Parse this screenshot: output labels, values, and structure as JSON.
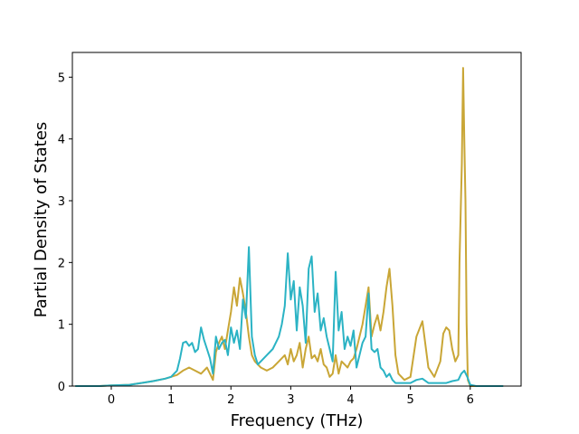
{
  "chart_data": {
    "type": "line",
    "title": "",
    "xlabel": "Frequency (THz)",
    "ylabel": "Partial Density of States",
    "xlim": [
      -0.65,
      6.85
    ],
    "ylim": [
      0,
      5.4
    ],
    "xticks": [
      0,
      1,
      2,
      3,
      4,
      5,
      6
    ],
    "yticks": [
      0,
      1,
      2,
      3,
      4,
      5
    ],
    "grid": false,
    "series": [
      {
        "color": "#c9a636",
        "x": [
          -0.6,
          -0.2,
          0,
          0.3,
          0.5,
          0.7,
          0.9,
          1.0,
          1.1,
          1.2,
          1.3,
          1.4,
          1.5,
          1.6,
          1.65,
          1.7,
          1.75,
          1.8,
          1.85,
          1.9,
          1.95,
          2.0,
          2.05,
          2.1,
          2.15,
          2.2,
          2.25,
          2.3,
          2.35,
          2.4,
          2.5,
          2.6,
          2.7,
          2.8,
          2.9,
          2.95,
          3.0,
          3.05,
          3.1,
          3.15,
          3.2,
          3.25,
          3.3,
          3.35,
          3.4,
          3.45,
          3.5,
          3.55,
          3.6,
          3.65,
          3.7,
          3.75,
          3.8,
          3.85,
          3.9,
          3.95,
          4.0,
          4.05,
          4.1,
          4.15,
          4.2,
          4.25,
          4.3,
          4.35,
          4.4,
          4.45,
          4.5,
          4.55,
          4.6,
          4.65,
          4.7,
          4.75,
          4.8,
          4.9,
          5.0,
          5.1,
          5.2,
          5.3,
          5.4,
          5.5,
          5.55,
          5.6,
          5.65,
          5.7,
          5.75,
          5.8,
          5.82,
          5.84,
          5.86,
          5.88,
          5.9,
          5.92,
          5.94,
          5.96,
          6.0,
          6.1,
          6.55
        ],
        "y": [
          0,
          0,
          0.01,
          0.02,
          0.05,
          0.08,
          0.12,
          0.15,
          0.18,
          0.25,
          0.3,
          0.25,
          0.2,
          0.3,
          0.2,
          0.1,
          0.55,
          0.7,
          0.8,
          0.6,
          0.9,
          1.2,
          1.6,
          1.3,
          1.75,
          1.5,
          1.2,
          0.8,
          0.5,
          0.4,
          0.3,
          0.25,
          0.3,
          0.4,
          0.5,
          0.35,
          0.6,
          0.4,
          0.5,
          0.7,
          0.3,
          0.6,
          0.8,
          0.45,
          0.5,
          0.4,
          0.6,
          0.35,
          0.3,
          0.15,
          0.2,
          0.5,
          0.2,
          0.4,
          0.35,
          0.3,
          0.4,
          0.45,
          0.6,
          0.8,
          1.0,
          1.3,
          1.6,
          0.8,
          1.0,
          1.15,
          0.9,
          1.2,
          1.6,
          1.9,
          1.3,
          0.5,
          0.2,
          0.1,
          0.15,
          0.8,
          1.05,
          0.3,
          0.15,
          0.4,
          0.85,
          0.95,
          0.9,
          0.6,
          0.4,
          0.5,
          2.0,
          2.8,
          3.6,
          5.15,
          4.0,
          3.0,
          1.0,
          0.1,
          0.0,
          0.0,
          0.0
        ]
      },
      {
        "color": "#2bb3c4",
        "x": [
          -0.6,
          -0.2,
          0,
          0.3,
          0.5,
          0.7,
          0.9,
          1.0,
          1.05,
          1.1,
          1.15,
          1.2,
          1.25,
          1.3,
          1.35,
          1.4,
          1.45,
          1.5,
          1.55,
          1.6,
          1.65,
          1.7,
          1.75,
          1.8,
          1.85,
          1.9,
          1.95,
          2.0,
          2.05,
          2.1,
          2.15,
          2.2,
          2.25,
          2.3,
          2.35,
          2.4,
          2.45,
          2.5,
          2.6,
          2.7,
          2.8,
          2.85,
          2.9,
          2.95,
          3.0,
          3.05,
          3.1,
          3.15,
          3.2,
          3.25,
          3.3,
          3.35,
          3.4,
          3.45,
          3.5,
          3.55,
          3.6,
          3.65,
          3.7,
          3.75,
          3.8,
          3.85,
          3.9,
          3.95,
          4.0,
          4.05,
          4.1,
          4.15,
          4.2,
          4.25,
          4.3,
          4.35,
          4.4,
          4.45,
          4.5,
          4.55,
          4.6,
          4.65,
          4.7,
          4.75,
          4.8,
          4.9,
          5.0,
          5.1,
          5.2,
          5.3,
          5.4,
          5.5,
          5.6,
          5.7,
          5.8,
          5.85,
          5.9,
          5.95,
          6.0,
          6.1,
          6.55
        ],
        "y": [
          0,
          0,
          0.01,
          0.02,
          0.05,
          0.08,
          0.12,
          0.15,
          0.2,
          0.25,
          0.45,
          0.7,
          0.72,
          0.65,
          0.7,
          0.55,
          0.6,
          0.95,
          0.75,
          0.6,
          0.45,
          0.2,
          0.8,
          0.6,
          0.7,
          0.75,
          0.5,
          0.95,
          0.7,
          0.9,
          0.6,
          1.4,
          1.1,
          2.25,
          0.8,
          0.5,
          0.35,
          0.4,
          0.5,
          0.6,
          0.8,
          1.0,
          1.3,
          2.15,
          1.4,
          1.7,
          0.9,
          1.6,
          1.3,
          0.7,
          1.9,
          2.1,
          1.2,
          1.5,
          0.9,
          1.1,
          0.8,
          0.6,
          0.4,
          1.85,
          0.9,
          1.2,
          0.6,
          0.8,
          0.65,
          0.9,
          0.3,
          0.5,
          0.7,
          0.8,
          1.5,
          0.6,
          0.55,
          0.6,
          0.3,
          0.25,
          0.15,
          0.2,
          0.1,
          0.05,
          0.05,
          0.05,
          0.05,
          0.1,
          0.12,
          0.05,
          0.05,
          0.05,
          0.05,
          0.08,
          0.1,
          0.2,
          0.25,
          0.15,
          0.02,
          0.0,
          0.0
        ]
      }
    ]
  }
}
